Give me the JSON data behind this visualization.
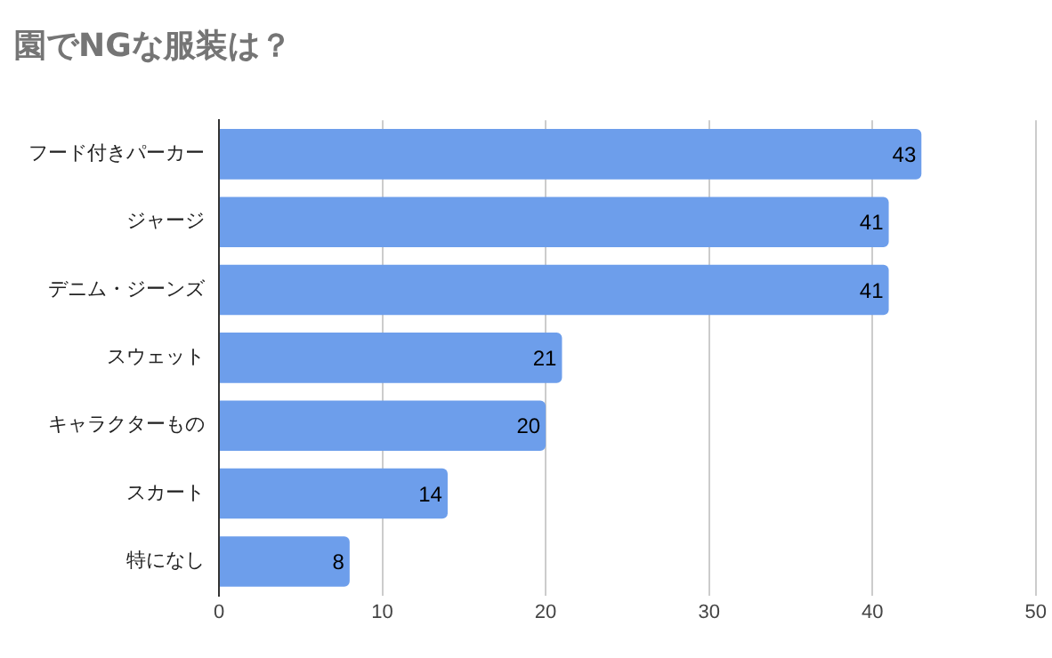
{
  "chart_data": {
    "type": "bar",
    "title": "園でNGな服装は？",
    "orientation": "horizontal",
    "categories": [
      "フード付きパーカー",
      "ジャージ",
      "デニム・ジーンズ",
      "スウェット",
      "キャラクターもの",
      "スカート",
      "特になし"
    ],
    "values": [
      43,
      41,
      41,
      21,
      20,
      14,
      8
    ],
    "color": "#6d9eeb",
    "xlim": [
      0,
      50
    ],
    "xticks": [
      0,
      10,
      20,
      30,
      40,
      50
    ],
    "grid": "x",
    "data_labels": true,
    "legend": false
  }
}
